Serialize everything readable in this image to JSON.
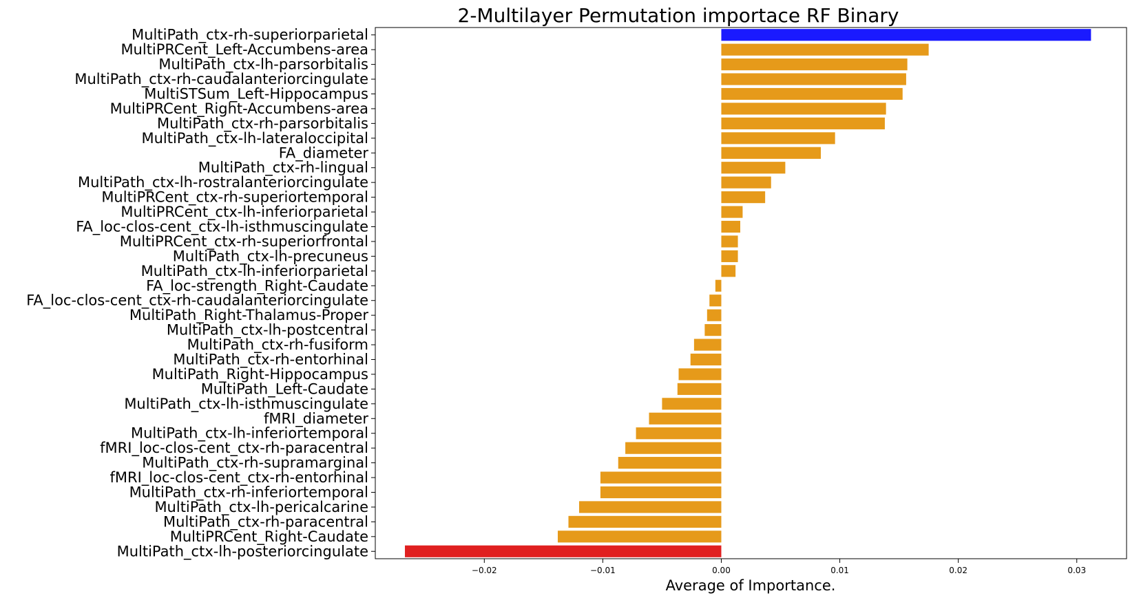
{
  "chart_data": {
    "type": "bar",
    "orientation": "horizontal",
    "title": "2-Multilayer Permutation importace RF Binary",
    "xlabel": "Average of Importance.",
    "ylabel": "",
    "xlim": [
      -0.0292,
      0.0342
    ],
    "xticks": [
      -0.02,
      -0.01,
      0.0,
      0.01,
      0.02,
      0.03
    ],
    "xtick_labels": [
      "−0.02",
      "−0.01",
      "0.00",
      "0.01",
      "0.02",
      "0.03"
    ],
    "grid": false,
    "colors": {
      "top": "#1a1aff",
      "default": "#e69a1a",
      "bottom": "#e02020"
    },
    "categories": [
      "MultiPath_ctx-rh-superiorparietal",
      "MultiPRCent_Left-Accumbens-area",
      "MultiPath_ctx-lh-parsorbitalis",
      "MultiPath_ctx-rh-caudalanteriorcingulate",
      "MultiSTSum_Left-Hippocampus",
      "MultiPRCent_Right-Accumbens-area",
      "MultiPath_ctx-rh-parsorbitalis",
      "MultiPath_ctx-lh-lateraloccipital",
      "FA_diameter",
      "MultiPath_ctx-rh-lingual",
      "MultiPath_ctx-lh-rostralanteriorcingulate",
      "MultiPRCent_ctx-rh-superiortemporal",
      "MultiPRCent_ctx-lh-inferiorparietal",
      "FA_loc-clos-cent_ctx-lh-isthmuscingulate",
      "MultiPRCent_ctx-rh-superiorfrontal",
      "MultiPath_ctx-lh-precuneus",
      "MultiPath_ctx-lh-inferiorparietal",
      "FA_loc-strength_Right-Caudate",
      "FA_loc-clos-cent_ctx-rh-caudalanteriorcingulate",
      "MultiPath_Right-Thalamus-Proper",
      "MultiPath_ctx-lh-postcentral",
      "MultiPath_ctx-rh-fusiform",
      "MultiPath_ctx-rh-entorhinal",
      "MultiPath_Right-Hippocampus",
      "MultiPath_Left-Caudate",
      "MultiPath_ctx-lh-isthmuscingulate",
      "fMRI_diameter",
      "MultiPath_ctx-lh-inferiortemporal",
      "fMRI_loc-clos-cent_ctx-rh-paracentral",
      "MultiPath_ctx-rh-supramarginal",
      "fMRI_loc-clos-cent_ctx-rh-entorhinal",
      "MultiPath_ctx-rh-inferiortemporal",
      "MultiPath_ctx-lh-pericalcarine",
      "MultiPath_ctx-rh-paracentral",
      "MultiPRCent_Right-Caudate",
      "MultiPath_ctx-lh-posteriorcingulate"
    ],
    "values": [
      0.0312,
      0.0175,
      0.0157,
      0.0156,
      0.0153,
      0.0139,
      0.0138,
      0.0096,
      0.0084,
      0.0054,
      0.0042,
      0.0037,
      0.0018,
      0.0016,
      0.0014,
      0.0014,
      0.0012,
      -0.0005,
      -0.001,
      -0.0012,
      -0.0014,
      -0.0023,
      -0.0026,
      -0.0036,
      -0.0037,
      -0.005,
      -0.0061,
      -0.0072,
      -0.0081,
      -0.0087,
      -0.0102,
      -0.0102,
      -0.012,
      -0.0129,
      -0.0138,
      -0.0267
    ]
  }
}
